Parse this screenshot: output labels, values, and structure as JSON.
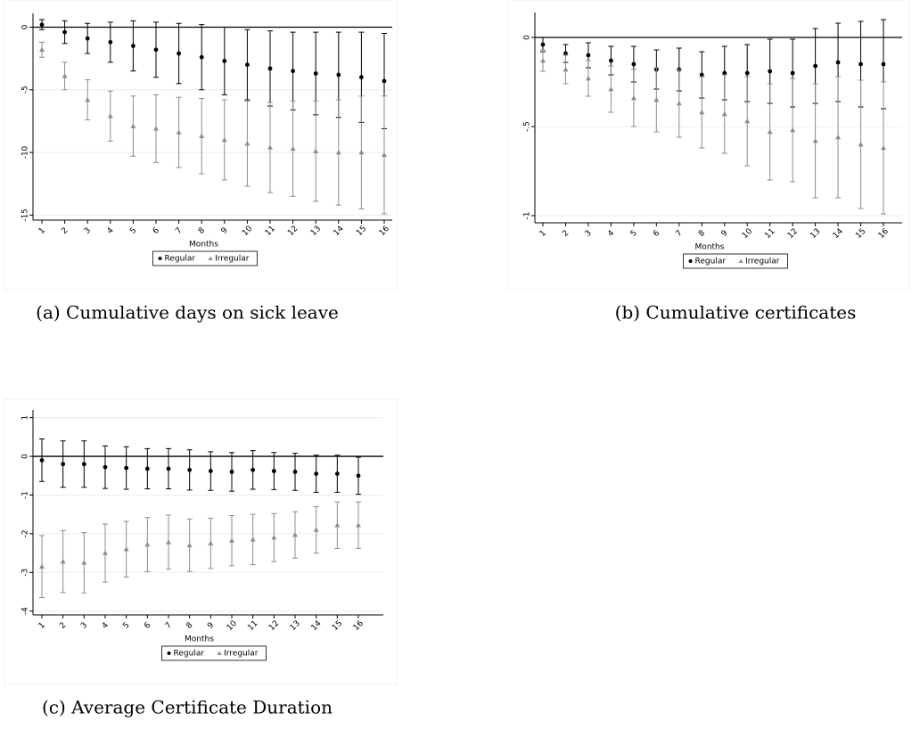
{
  "chart_data": [
    {
      "type": "errorbar",
      "caption": "(a) Cumulative days on sick leave",
      "x_label": "Months",
      "categories": [
        "1",
        "2",
        "3",
        "4",
        "5",
        "6",
        "7",
        "8",
        "9",
        "10",
        "11",
        "12",
        "13",
        "14",
        "15",
        "16"
      ],
      "ylim": [
        -15.4,
        1.1
      ],
      "yticks": [
        0,
        -5,
        -10,
        -15
      ],
      "grid": true,
      "hline": 0,
      "series": [
        {
          "name": "Regular",
          "color": "#000000",
          "marker": "circle",
          "values": [
            0.2,
            -0.4,
            -0.9,
            -1.2,
            -1.5,
            -1.8,
            -2.1,
            -2.4,
            -2.7,
            -3.0,
            -3.3,
            -3.5,
            -3.7,
            -3.8,
            -4.0,
            -4.3
          ],
          "errors": [
            0.4,
            0.9,
            1.2,
            1.6,
            2.0,
            2.2,
            2.4,
            2.6,
            2.7,
            2.8,
            3.0,
            3.1,
            3.3,
            3.4,
            3.6,
            3.8
          ]
        },
        {
          "name": "Irregular",
          "color": "#8c8c8c",
          "marker": "triangle",
          "values": [
            -1.8,
            -3.9,
            -5.8,
            -7.1,
            -7.9,
            -8.1,
            -8.4,
            -8.7,
            -9.0,
            -9.3,
            -9.6,
            -9.7,
            -9.9,
            -10.0,
            -10.0,
            -10.2
          ],
          "errors": [
            0.6,
            1.1,
            1.6,
            2.0,
            2.4,
            2.7,
            2.8,
            3.0,
            3.2,
            3.4,
            3.6,
            3.8,
            4.0,
            4.2,
            4.5,
            4.7
          ]
        }
      ]
    },
    {
      "type": "errorbar",
      "caption": "(b) Cumulative certificates",
      "x_label": "Months",
      "categories": [
        "1",
        "2",
        "3",
        "4",
        "5",
        "6",
        "7",
        "8",
        "9",
        "10",
        "11",
        "12",
        "13",
        "14",
        "15",
        "16"
      ],
      "ylim": [
        -1.04,
        0.14
      ],
      "yticks": [
        0,
        {
          "value": -0.5,
          "label": "-.5"
        },
        -1
      ],
      "grid": true,
      "hline": 0,
      "series": [
        {
          "name": "Regular",
          "color": "#000000",
          "marker": "circle",
          "values": [
            -0.04,
            -0.09,
            -0.1,
            -0.13,
            -0.15,
            -0.18,
            -0.18,
            -0.21,
            -0.2,
            -0.2,
            -0.19,
            -0.2,
            -0.16,
            -0.14,
            -0.15,
            -0.15
          ],
          "errors": [
            0.04,
            0.05,
            0.07,
            0.08,
            0.1,
            0.11,
            0.12,
            0.13,
            0.15,
            0.16,
            0.18,
            0.19,
            0.21,
            0.22,
            0.24,
            0.25
          ]
        },
        {
          "name": "Irregular",
          "color": "#8c8c8c",
          "marker": "triangle",
          "values": [
            -0.13,
            -0.18,
            -0.23,
            -0.29,
            -0.34,
            -0.35,
            -0.37,
            -0.42,
            -0.43,
            -0.47,
            -0.53,
            -0.52,
            -0.58,
            -0.56,
            -0.6,
            -0.62
          ],
          "errors": [
            0.06,
            0.08,
            0.1,
            0.13,
            0.16,
            0.18,
            0.19,
            0.2,
            0.22,
            0.25,
            0.27,
            0.29,
            0.32,
            0.34,
            0.36,
            0.37
          ]
        }
      ]
    },
    {
      "type": "errorbar",
      "caption": "(c) Average Certificate Duration",
      "x_label": "Months",
      "categories": [
        "1",
        "2",
        "3",
        "4",
        "5",
        "6",
        "7",
        "8",
        "9",
        "10",
        "11",
        "12",
        "13",
        "14",
        "15",
        "16"
      ],
      "ylim": [
        -4.1,
        1.2
      ],
      "yticks": [
        1,
        0,
        -1,
        -2,
        -3,
        -4
      ],
      "grid": true,
      "hline": 0,
      "series": [
        {
          "name": "Regular",
          "color": "#000000",
          "marker": "circle",
          "values": [
            -0.1,
            -0.2,
            -0.2,
            -0.28,
            -0.3,
            -0.32,
            -0.32,
            -0.35,
            -0.38,
            -0.4,
            -0.35,
            -0.38,
            -0.4,
            -0.45,
            -0.45,
            -0.5
          ],
          "errors": [
            0.55,
            0.6,
            0.6,
            0.55,
            0.55,
            0.52,
            0.52,
            0.52,
            0.5,
            0.5,
            0.5,
            0.48,
            0.48,
            0.48,
            0.48,
            0.48
          ]
        },
        {
          "name": "Irregular",
          "color": "#8c8c8c",
          "marker": "triangle",
          "values": [
            -2.85,
            -2.72,
            -2.75,
            -2.5,
            -2.4,
            -2.28,
            -2.22,
            -2.3,
            -2.25,
            -2.18,
            -2.15,
            -2.1,
            -2.03,
            -1.9,
            -1.78,
            -1.78
          ],
          "errors": [
            0.8,
            0.8,
            0.78,
            0.75,
            0.72,
            0.7,
            0.7,
            0.68,
            0.65,
            0.65,
            0.65,
            0.62,
            0.6,
            0.6,
            0.6,
            0.6
          ]
        }
      ]
    }
  ]
}
